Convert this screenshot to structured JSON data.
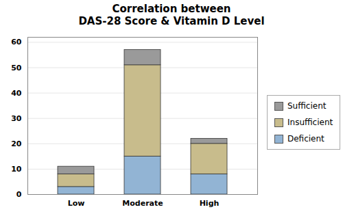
{
  "chart_data": {
    "type": "bar",
    "title": "Correlation between\nDAS-28 Score & Vitamin D Level",
    "categories": [
      "Low",
      "Moderate",
      "High"
    ],
    "series": [
      {
        "name": "Deficient",
        "color": "#92b4d4",
        "values": [
          3,
          15,
          8
        ]
      },
      {
        "name": "Insufficient",
        "color": "#c8bc8c",
        "values": [
          5,
          36,
          12
        ]
      },
      {
        "name": "Sufficient",
        "color": "#9a9a9a",
        "values": [
          3,
          6,
          2
        ]
      }
    ],
    "ylim": [
      0,
      62
    ],
    "yticks": [
      0,
      10,
      20,
      30,
      40,
      50,
      60
    ],
    "stacked": true,
    "grid": true,
    "legend": "right"
  }
}
